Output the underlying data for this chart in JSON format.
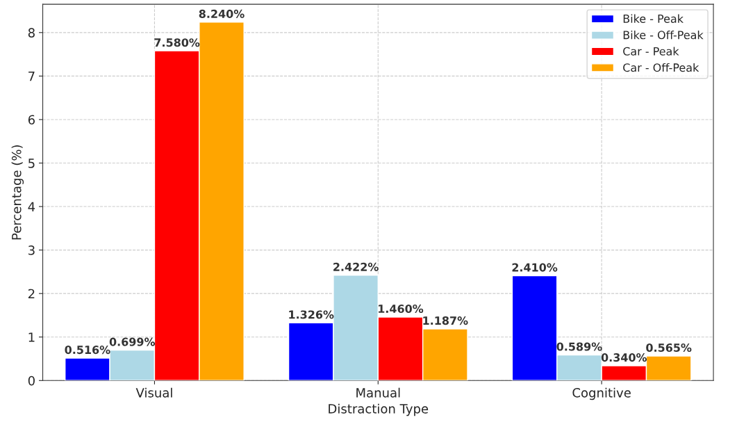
{
  "chart_data": {
    "type": "bar",
    "xlabel": "Distraction Type",
    "ylabel": "Percentage (%)",
    "categories": [
      "Visual",
      "Manual",
      "Cognitive"
    ],
    "series": [
      {
        "name": "Bike - Peak",
        "color": "#0000ff",
        "values": [
          0.516,
          1.326,
          2.41
        ],
        "value_labels": [
          "0.516%",
          "1.326%",
          "2.410%"
        ]
      },
      {
        "name": "Bike - Off-Peak",
        "color": "#add8e6",
        "values": [
          0.699,
          2.422,
          0.589
        ],
        "value_labels": [
          "0.699%",
          "2.422%",
          "0.589%"
        ]
      },
      {
        "name": "Car - Peak",
        "color": "#ff0000",
        "values": [
          7.58,
          1.46,
          0.34
        ],
        "value_labels": [
          "7.580%",
          "1.460%",
          "0.340%"
        ]
      },
      {
        "name": "Car - Off-Peak",
        "color": "#ffa500",
        "values": [
          8.24,
          1.187,
          0.565
        ],
        "value_labels": [
          "8.240%",
          "1.187%",
          "0.565%"
        ]
      }
    ],
    "ylim": [
      0,
      8.65
    ],
    "yticks": [
      0,
      1,
      2,
      3,
      4,
      5,
      6,
      7,
      8
    ],
    "grid": true,
    "legend": "top right"
  }
}
